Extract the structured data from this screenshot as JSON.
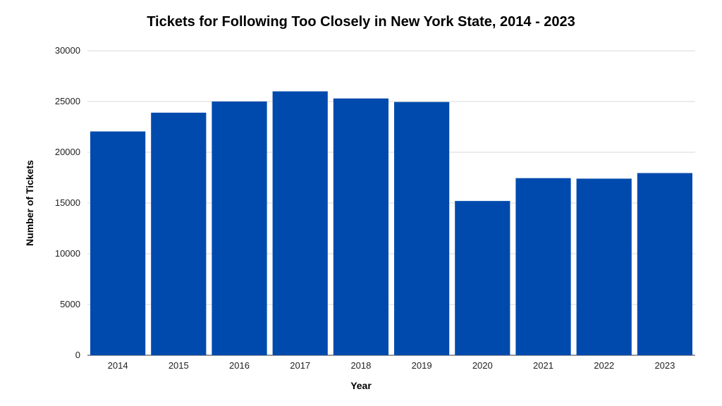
{
  "chart_data": {
    "type": "bar",
    "title": "Tickets for Following Too Closely in New York State, 2014 - 2023",
    "xlabel": "Year",
    "ylabel": "Number of Tickets",
    "categories": [
      "2014",
      "2015",
      "2016",
      "2017",
      "2018",
      "2019",
      "2020",
      "2021",
      "2022",
      "2023"
    ],
    "values": [
      22050,
      23900,
      25000,
      26000,
      25300,
      24950,
      15200,
      17450,
      17400,
      17950
    ],
    "ylim": [
      0,
      30000
    ],
    "yticks": [
      0,
      5000,
      10000,
      15000,
      20000,
      25000,
      30000
    ],
    "ytick_labels": [
      "0",
      "5000",
      "10000",
      "15000",
      "20000",
      "25000",
      "30000"
    ],
    "grid": true,
    "legend": "none",
    "bar_color": "#004aad",
    "grid_color": "#d9d9d9"
  }
}
